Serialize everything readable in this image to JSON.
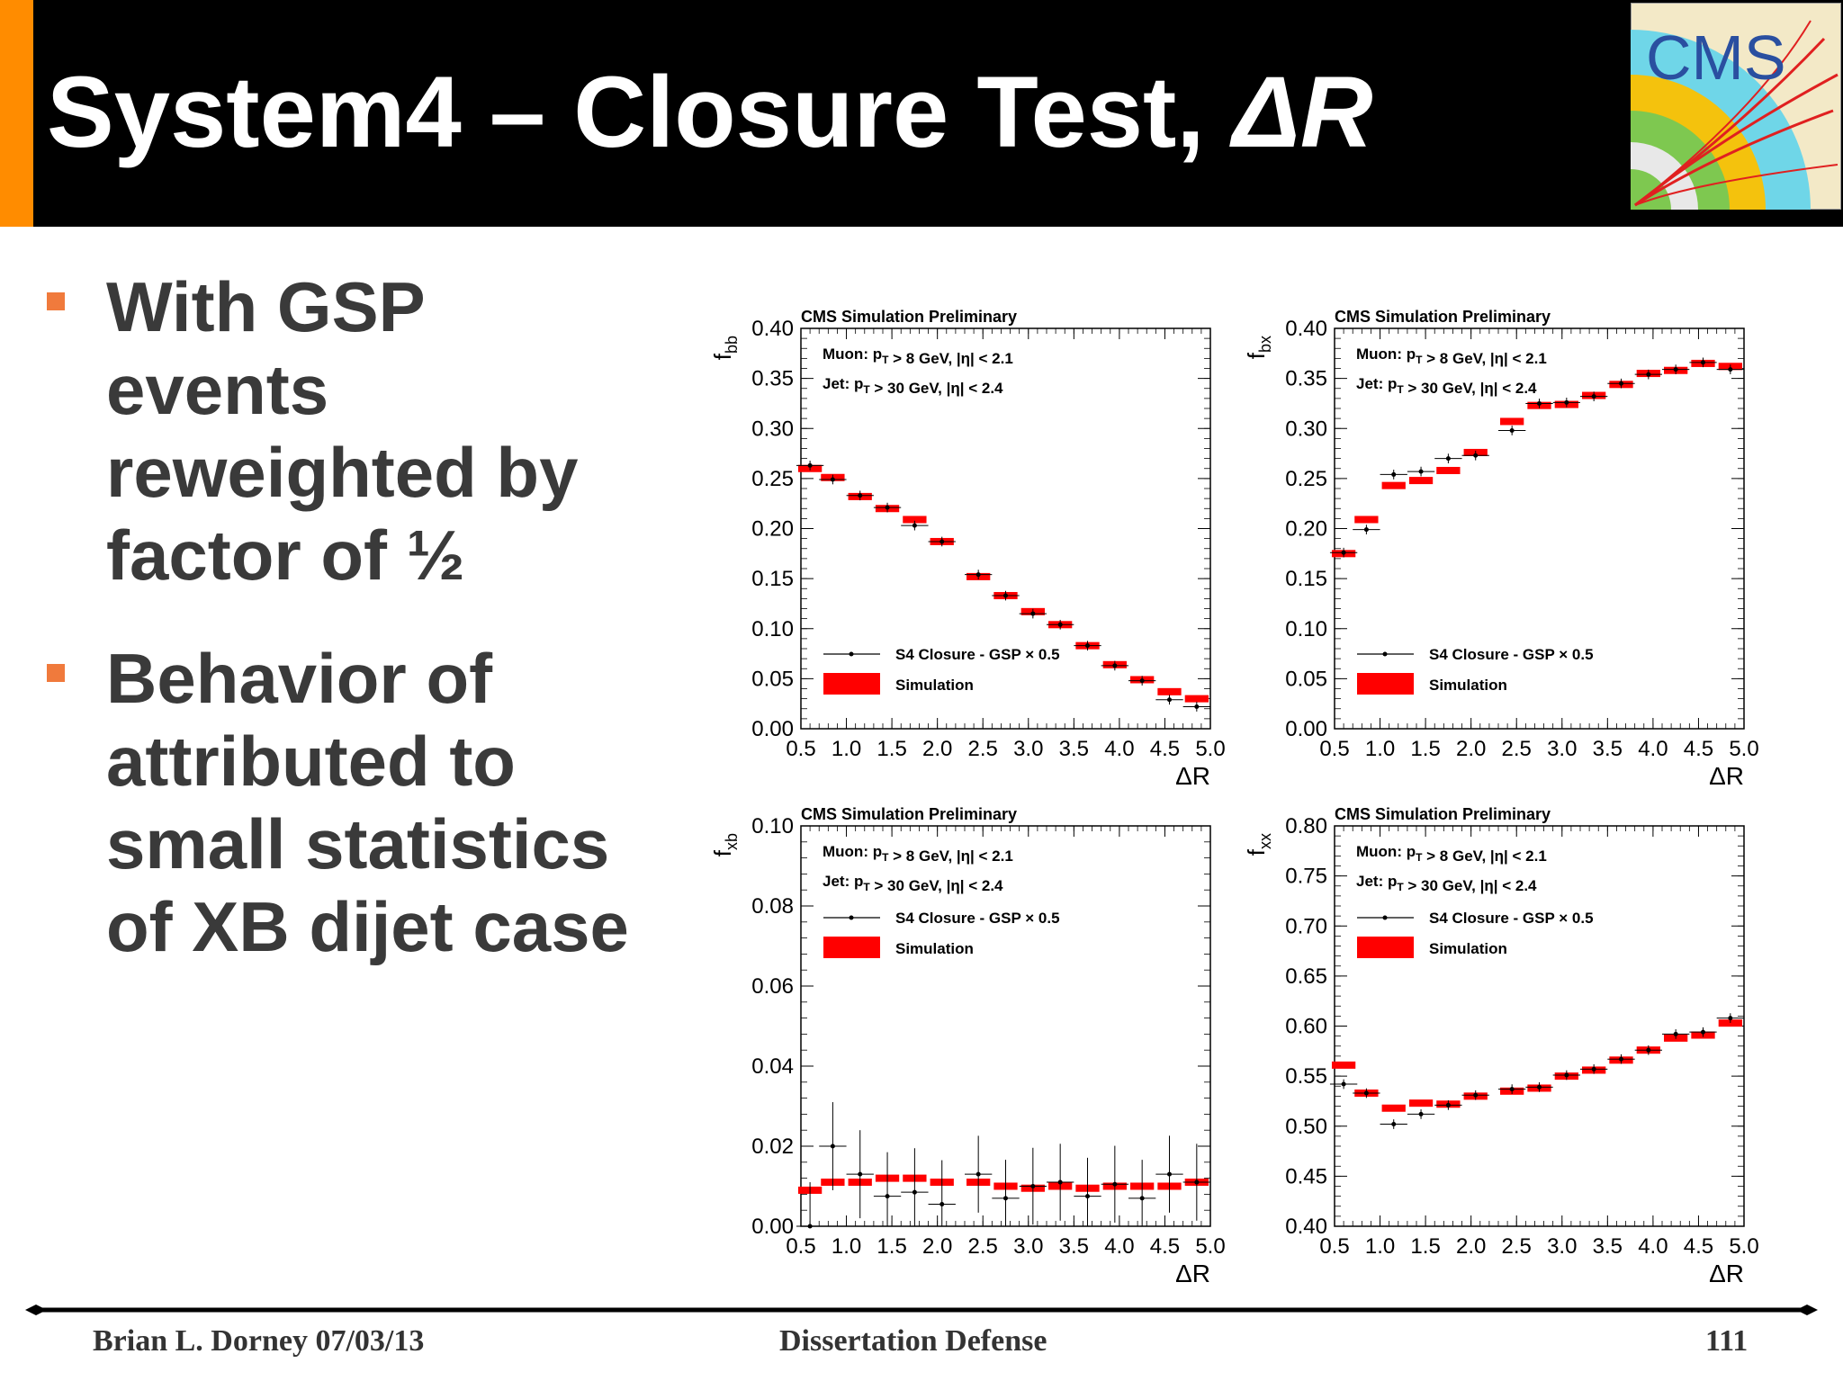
{
  "slide": {
    "title_main": "System4 – Closure Test, ",
    "title_symbol": "ΔR",
    "logo_text": "CMS"
  },
  "bullets": [
    {
      "text": "With GSP\nevents\nreweighted by\nfactor of ½"
    },
    {
      "text": "Behavior of\nattributed to\nsmall statistics\nof XB dijet case"
    }
  ],
  "footer": {
    "left": "Brian L. Dorney 07/03/13",
    "center": "Dissertation Defense",
    "right": "111"
  },
  "colors": {
    "header_bg": "#000000",
    "accent": "#ff8c00",
    "bullet": "#f07a3c",
    "simulation": "#ff0000",
    "closure": "#000000"
  },
  "chart_data": [
    {
      "type": "line",
      "ylabel_main": "f",
      "ylabel_sub": "bb",
      "xlabel": "ΔR",
      "label": "CMS Simulation Preliminary",
      "cut_muon": "Muon: p_T > 8 GeV, |η| < 2.1",
      "cut_jet": "Jet: p_T > 30 GeV, |η| < 2.4",
      "legend_closure": "S4 Closure - GSP × 0.5",
      "legend_simulation": "Simulation",
      "legend_placement": "bottom-left",
      "xlim": [
        0.5,
        5.0
      ],
      "ylim": [
        0.0,
        0.4
      ],
      "xticks": [
        "0.5",
        "1.0",
        "1.5",
        "2.0",
        "2.5",
        "3.0",
        "3.5",
        "4.0",
        "4.5",
        "5.0"
      ],
      "yticks": [
        "0.00",
        "0.05",
        "0.10",
        "0.15",
        "0.20",
        "0.25",
        "0.30",
        "0.35",
        "0.40"
      ],
      "x": [
        0.6,
        0.85,
        1.15,
        1.45,
        1.75,
        2.05,
        2.45,
        2.75,
        3.05,
        3.35,
        3.65,
        3.95,
        4.25,
        4.55,
        4.85
      ],
      "simulation": [
        0.26,
        0.251,
        0.232,
        0.22,
        0.209,
        0.187,
        0.152,
        0.133,
        0.117,
        0.104,
        0.083,
        0.064,
        0.049,
        0.037,
        0.03
      ],
      "closure": [
        0.263,
        0.249,
        0.233,
        0.221,
        0.203,
        0.187,
        0.154,
        0.133,
        0.115,
        0.104,
        0.083,
        0.063,
        0.048,
        0.029,
        0.022
      ]
    },
    {
      "type": "line",
      "ylabel_main": "f",
      "ylabel_sub": "bx",
      "xlabel": "ΔR",
      "label": "CMS Simulation Preliminary",
      "cut_muon": "Muon: p_T > 8 GeV, |η| < 2.1",
      "cut_jet": "Jet: p_T > 30 GeV, |η| < 2.4",
      "legend_closure": "S4 Closure - GSP × 0.5",
      "legend_simulation": "Simulation",
      "legend_placement": "bottom-left",
      "xlim": [
        0.5,
        5.0
      ],
      "ylim": [
        0.0,
        0.4
      ],
      "xticks": [
        "0.5",
        "1.0",
        "1.5",
        "2.0",
        "2.5",
        "3.0",
        "3.5",
        "4.0",
        "4.5",
        "5.0"
      ],
      "yticks": [
        "0.00",
        "0.05",
        "0.10",
        "0.15",
        "0.20",
        "0.25",
        "0.30",
        "0.35",
        "0.40"
      ],
      "x": [
        0.6,
        0.85,
        1.15,
        1.45,
        1.75,
        2.05,
        2.45,
        2.75,
        3.05,
        3.35,
        3.65,
        3.95,
        4.25,
        4.55,
        4.85
      ],
      "simulation": [
        0.175,
        0.209,
        0.243,
        0.248,
        0.258,
        0.276,
        0.307,
        0.323,
        0.324,
        0.333,
        0.344,
        0.355,
        0.358,
        0.365,
        0.362
      ],
      "closure": [
        0.176,
        0.199,
        0.254,
        0.257,
        0.27,
        0.273,
        0.298,
        0.325,
        0.326,
        0.332,
        0.345,
        0.354,
        0.359,
        0.366,
        0.359
      ]
    },
    {
      "type": "line",
      "ylabel_main": "f",
      "ylabel_sub": "xb",
      "xlabel": "ΔR",
      "label": "CMS Simulation Preliminary",
      "cut_muon": "Muon: p_T > 8 GeV, |η| < 2.1",
      "cut_jet": "Jet: p_T > 30 GeV, |η| < 2.4",
      "legend_closure": "S4 Closure - GSP × 0.5",
      "legend_simulation": "Simulation",
      "legend_placement": "top-left",
      "xlim": [
        0.5,
        5.0
      ],
      "ylim": [
        0.0,
        0.1
      ],
      "xticks": [
        "0.5",
        "1.0",
        "1.5",
        "2.0",
        "2.5",
        "3.0",
        "3.5",
        "4.0",
        "4.5",
        "5.0"
      ],
      "yticks": [
        "0.00",
        "0.02",
        "0.04",
        "0.06",
        "0.08",
        "0.10"
      ],
      "x": [
        0.6,
        0.85,
        1.15,
        1.45,
        1.75,
        2.05,
        2.45,
        2.75,
        3.05,
        3.35,
        3.65,
        3.95,
        4.25,
        4.55,
        4.85
      ],
      "simulation": [
        0.009,
        0.011,
        0.011,
        0.012,
        0.012,
        0.011,
        0.011,
        0.01,
        0.0095,
        0.01,
        0.0095,
        0.01,
        0.01,
        0.01,
        0.011
      ],
      "closure": [
        0.0,
        0.02,
        0.013,
        0.0075,
        0.0085,
        0.0055,
        0.013,
        0.007,
        0.01,
        0.011,
        0.0075,
        0.0105,
        0.007,
        0.013,
        0.011
      ]
    },
    {
      "type": "line",
      "ylabel_main": "f",
      "ylabel_sub": "xx",
      "xlabel": "ΔR",
      "label": "CMS Simulation Preliminary",
      "cut_muon": "Muon: p_T > 8 GeV, |η| < 2.1",
      "cut_jet": "Jet: p_T > 30 GeV, |η| < 2.4",
      "legend_closure": "S4 Closure - GSP × 0.5",
      "legend_simulation": "Simulation",
      "legend_placement": "top-left",
      "xlim": [
        0.5,
        5.0
      ],
      "ylim": [
        0.4,
        0.8
      ],
      "xticks": [
        "0.5",
        "1.0",
        "1.5",
        "2.0",
        "2.5",
        "3.0",
        "3.5",
        "4.0",
        "4.5",
        "5.0"
      ],
      "yticks": [
        "0.40",
        "0.45",
        "0.50",
        "0.55",
        "0.60",
        "0.65",
        "0.70",
        "0.75",
        "0.80"
      ],
      "x": [
        0.6,
        0.85,
        1.15,
        1.45,
        1.75,
        2.05,
        2.45,
        2.75,
        3.05,
        3.35,
        3.65,
        3.95,
        4.25,
        4.55,
        4.85
      ],
      "simulation": [
        0.561,
        0.533,
        0.518,
        0.523,
        0.522,
        0.53,
        0.535,
        0.538,
        0.55,
        0.556,
        0.566,
        0.576,
        0.588,
        0.591,
        0.603
      ],
      "closure": [
        0.542,
        0.533,
        0.502,
        0.512,
        0.521,
        0.531,
        0.537,
        0.539,
        0.551,
        0.557,
        0.567,
        0.576,
        0.592,
        0.594,
        0.608
      ]
    }
  ]
}
